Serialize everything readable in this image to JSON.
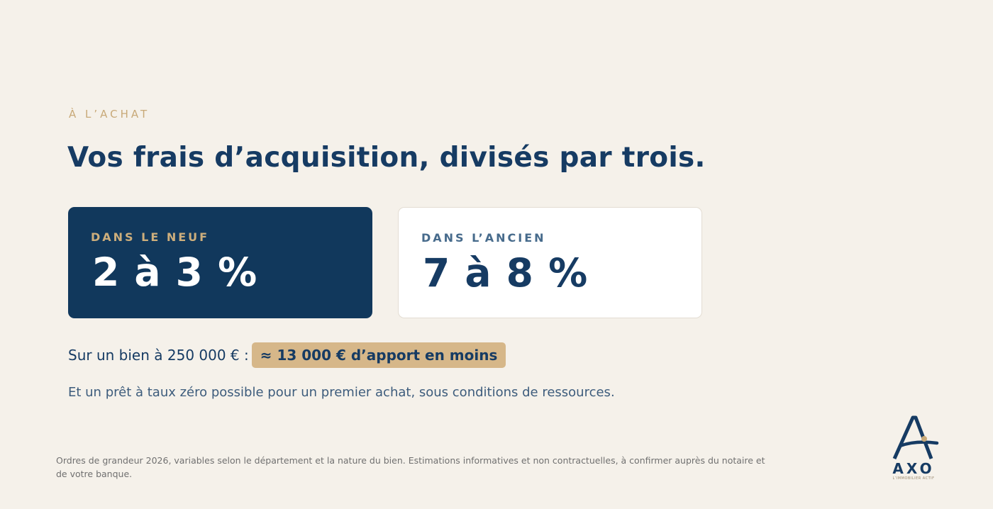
{
  "header": {
    "eyebrow": "À L’ACHAT",
    "title": "Vos frais d’acquisition, divisés par trois."
  },
  "cards": [
    {
      "label": "DANS LE NEUF",
      "value": "2 à 3 %"
    },
    {
      "label": "DANS L’ANCIEN",
      "value": "7 à 8 %"
    }
  ],
  "highlight": {
    "lead": "Sur un bien à 250 000 € :",
    "badge": "≈ 13 000 € d’apport en moins"
  },
  "ptz": "Et un prêt à taux zéro possible pour un premier achat, sous conditions de ressources.",
  "footnote": "Ordres de grandeur 2026, variables selon le département et la nature du bien. Estimations informatives et non contractuelles, à confirmer auprès du notaire et de votre banque.",
  "logo": {
    "word": "AXO",
    "tagline": "L’IMMOBILIER ACTIF",
    "icon": "axo-logo-icon"
  },
  "colors": {
    "background": "#f5f1ea",
    "navy": "#11385c",
    "gold": "#d6b789",
    "eyebrow": "#c8a978"
  }
}
